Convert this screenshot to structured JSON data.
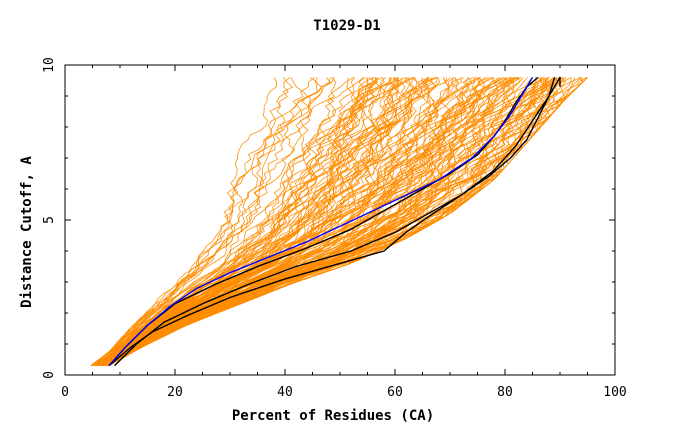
{
  "chart_data": {
    "type": "line",
    "title": "T1029-D1",
    "xlabel": "Percent of Residues (CA)",
    "ylabel": "Distance Cutoff, A",
    "xlim": [
      0,
      100
    ],
    "ylim": [
      0,
      10
    ],
    "x_ticks": [
      0,
      20,
      40,
      60,
      80,
      100
    ],
    "y_ticks": [
      0,
      5,
      10
    ],
    "grid": false,
    "colors": {
      "background_curves": "#ff8c00",
      "highlight_black": "#000000",
      "highlight_blue": "#0000ff",
      "axes": "#000000"
    },
    "background_band": {
      "description_count": 150,
      "lower_envelope": [
        [
          4.5,
          0.3
        ],
        [
          8,
          0.8
        ],
        [
          12,
          1.7
        ],
        [
          17,
          2.6
        ],
        [
          22,
          3.5
        ],
        [
          26,
          4.6
        ],
        [
          29,
          6
        ],
        [
          32,
          7.4
        ],
        [
          36,
          8.6
        ],
        [
          38,
          9.6
        ]
      ],
      "upper_envelope": [
        [
          8,
          0.3
        ],
        [
          14,
          0.9
        ],
        [
          22,
          1.6
        ],
        [
          32,
          2.3
        ],
        [
          42,
          3.0
        ],
        [
          52,
          3.6
        ],
        [
          62,
          4.4
        ],
        [
          70,
          5.2
        ],
        [
          78,
          6.3
        ],
        [
          85,
          7.7
        ],
        [
          91,
          8.9
        ],
        [
          95,
          9.6
        ]
      ]
    },
    "series": [
      {
        "color": "#000000",
        "x": [
          8,
          12,
          16,
          22,
          30,
          40,
          50,
          58,
          62,
          66,
          72,
          78,
          82,
          85,
          88,
          90,
          90
        ],
        "y": [
          0.3,
          0.9,
          1.4,
          1.9,
          2.5,
          3.1,
          3.6,
          4.0,
          4.6,
          5.1,
          5.8,
          6.6,
          7.4,
          8.2,
          9.0,
          9.6,
          9.3
        ]
      },
      {
        "color": "#000000",
        "x": [
          9,
          13,
          18,
          25,
          33,
          42,
          52,
          60,
          66,
          72,
          77,
          81,
          84,
          86,
          88,
          89
        ],
        "y": [
          0.3,
          1.0,
          1.7,
          2.3,
          2.9,
          3.5,
          4.0,
          4.6,
          5.2,
          5.8,
          6.4,
          7.0,
          7.6,
          8.3,
          9.0,
          9.6
        ]
      },
      {
        "color": "#000000",
        "x": [
          8,
          11,
          15,
          20,
          27,
          35,
          44,
          52,
          58,
          64,
          70,
          75,
          78,
          80,
          82,
          84,
          86
        ],
        "y": [
          0.3,
          0.9,
          1.6,
          2.3,
          2.9,
          3.5,
          4.1,
          4.7,
          5.3,
          5.9,
          6.5,
          7.1,
          7.7,
          8.2,
          8.8,
          9.3,
          9.6
        ]
      },
      {
        "color": "#0000ff",
        "x": [
          8,
          11,
          15,
          19,
          24,
          30,
          37,
          44,
          50,
          56,
          62,
          68,
          74,
          78,
          81,
          83,
          85
        ],
        "y": [
          0.3,
          0.9,
          1.6,
          2.2,
          2.8,
          3.3,
          3.8,
          4.3,
          4.8,
          5.3,
          5.8,
          6.3,
          7.0,
          7.7,
          8.4,
          9.0,
          9.6
        ]
      }
    ]
  }
}
